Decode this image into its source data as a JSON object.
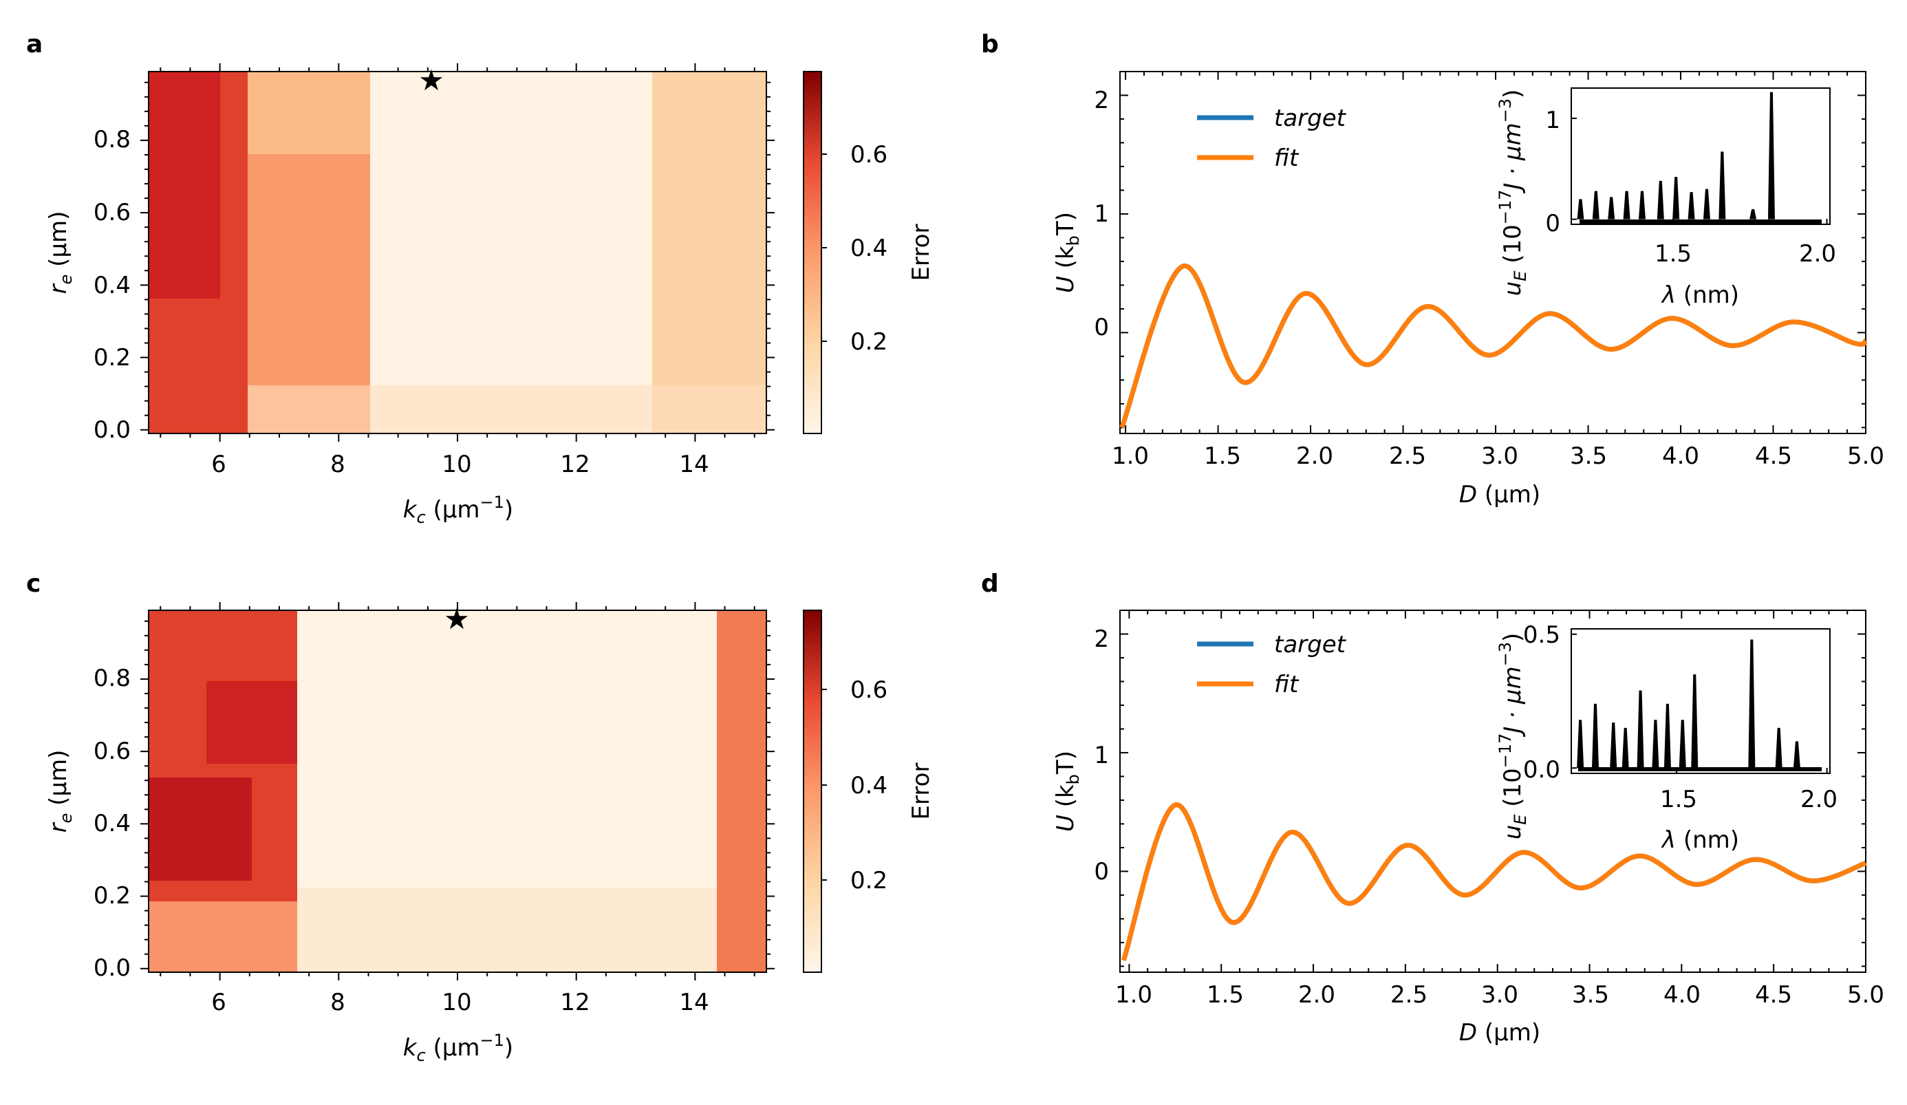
{
  "panels": {
    "a": "a",
    "b": "b",
    "c": "c",
    "d": "d"
  },
  "heatmap_axis": {
    "xlabel_main": "k",
    "xlabel_sub": "c",
    "xlabel_unit_open": " (μm",
    "xlabel_unit_sup": "−1",
    "xlabel_unit_close": ")",
    "ylabel_main": "r",
    "ylabel_sub": "e",
    "ylabel_unit": " (μm)",
    "colorbar_label": "Error"
  },
  "line_axis": {
    "xlabel_main": "D",
    "xlabel_unit": " (μm)",
    "ylabel_main": "U",
    "ylabel_unit_open": " (k",
    "ylabel_unit_sub": "b",
    "ylabel_unit_close": "T)",
    "inset_xlabel_main": "λ",
    "inset_xlabel_unit": " (nm)",
    "inset_ylabel_main": "u",
    "inset_ylabel_sub": "E",
    "inset_ylabel_a": " (10",
    "inset_ylabel_sup1": "−17",
    "inset_ylabel_b": "J · μm",
    "inset_ylabel_sup2": "−3",
    "inset_ylabel_c": ")",
    "legend": [
      "target",
      "fit"
    ]
  },
  "colors": {
    "target": "#1f77b4",
    "fit": "#ff7f0e",
    "inset": "#000000"
  },
  "chart_data": [
    {
      "id": "a",
      "type": "heatmap",
      "title": "",
      "xlabel": "k_c (μm^-1)",
      "ylabel": "r_e (μm)",
      "xlim": [
        4.8,
        15.2
      ],
      "ylim": [
        -0.01,
        0.99
      ],
      "xticks": [
        6,
        8,
        10,
        12,
        14
      ],
      "xtick_labels": [
        "6",
        "8",
        "10",
        "12",
        "14"
      ],
      "yticks": [
        0.0,
        0.2,
        0.4,
        0.6,
        0.8
      ],
      "ytick_labels": [
        "0.0",
        "0.2",
        "0.4",
        "0.6",
        "0.8"
      ],
      "colorbar": {
        "label": "Error",
        "range": [
          0.02,
          0.78
        ],
        "ticks": [
          0.2,
          0.4,
          0.6
        ],
        "tick_labels": [
          "0.2",
          "0.4",
          "0.6"
        ]
      },
      "star": {
        "kc": 9.6,
        "re": 0.96
      },
      "regions": [
        {
          "kc": [
            4.8,
            6.4
          ],
          "re": [
            0.0,
            1.0
          ],
          "error": 0.6
        },
        {
          "kc": [
            6.4,
            8.4
          ],
          "re": [
            0.0,
            1.0
          ],
          "error": 0.38
        },
        {
          "kc": [
            8.4,
            13.0
          ],
          "re": [
            0.0,
            1.0
          ],
          "error": 0.06
        },
        {
          "kc": [
            13.0,
            15.2
          ],
          "re": [
            0.0,
            1.0
          ],
          "error": 0.2
        }
      ]
    },
    {
      "id": "b",
      "type": "line",
      "xlabel": "D (μm)",
      "ylabel": "U (k_bT)",
      "xlim": [
        0.97,
        5.0
      ],
      "ylim": [
        -0.85,
        2.2
      ],
      "xticks": [
        1.0,
        1.5,
        2.0,
        2.5,
        3.0,
        3.5,
        4.0,
        4.5,
        5.0
      ],
      "xtick_labels": [
        "1.0",
        "1.5",
        "2.0",
        "2.5",
        "3.0",
        "3.5",
        "4.0",
        "4.5",
        "5.0"
      ],
      "yticks": [
        0,
        1,
        2
      ],
      "ytick_labels": [
        "0",
        "1",
        "2"
      ],
      "legend": [
        "target",
        "fit"
      ],
      "series": [
        {
          "name": "target"
        },
        {
          "name": "fit"
        }
      ],
      "x": [
        0.98,
        1.31,
        1.64,
        1.97,
        2.3,
        2.63,
        2.96,
        3.29,
        3.62,
        3.95,
        4.28,
        4.61,
        4.94,
        5.0
      ],
      "y": [
        -0.8,
        0.56,
        -0.42,
        0.33,
        -0.27,
        0.22,
        -0.19,
        0.16,
        -0.14,
        0.12,
        -0.11,
        0.09,
        -0.09,
        -0.07
      ],
      "inset": {
        "type": "bar",
        "xlabel": "λ (nm)",
        "ylabel": "u_E (10^-17 J·μm^-3)",
        "xlim": [
          1.17,
          2.01
        ],
        "ylim": [
          -0.05,
          1.3
        ],
        "xticks": [
          1.5,
          2.0
        ],
        "xtick_labels": [
          "1.5",
          "2.0"
        ],
        "yticks": [
          0,
          1
        ],
        "ytick_labels": [
          "0",
          "1"
        ],
        "peaks_x": [
          1.2,
          1.25,
          1.3,
          1.35,
          1.4,
          1.46,
          1.51,
          1.56,
          1.61,
          1.66,
          1.76,
          1.82
        ],
        "peaks_y": [
          0.2,
          0.28,
          0.22,
          0.28,
          0.28,
          0.38,
          0.42,
          0.27,
          0.3,
          0.67,
          0.1,
          1.26
        ]
      }
    },
    {
      "id": "c",
      "type": "heatmap",
      "title": "",
      "xlabel": "k_c (μm^-1)",
      "ylabel": "r_e (μm)",
      "xlim": [
        4.8,
        15.2
      ],
      "ylim": [
        -0.01,
        0.99
      ],
      "xticks": [
        6,
        8,
        10,
        12,
        14
      ],
      "xtick_labels": [
        "6",
        "8",
        "10",
        "12",
        "14"
      ],
      "yticks": [
        0.0,
        0.2,
        0.4,
        0.6,
        0.8
      ],
      "ytick_labels": [
        "0.0",
        "0.2",
        "0.4",
        "0.6",
        "0.8"
      ],
      "colorbar": {
        "label": "Error",
        "range": [
          0.02,
          0.76
        ],
        "ticks": [
          0.2,
          0.4,
          0.6
        ],
        "tick_labels": [
          "0.2",
          "0.4",
          "0.6"
        ]
      },
      "star": {
        "kc": 10.0,
        "re": 0.96
      },
      "regions": [
        {
          "kc": [
            4.8,
            7.3
          ],
          "re": [
            0.0,
            1.0
          ],
          "error": 0.6
        },
        {
          "kc": [
            7.3,
            14.4
          ],
          "re": [
            0.0,
            1.0
          ],
          "error": 0.06
        },
        {
          "kc": [
            14.4,
            15.2
          ],
          "re": [
            0.0,
            1.0
          ],
          "error": 0.4
        }
      ]
    },
    {
      "id": "d",
      "type": "line",
      "xlabel": "D (μm)",
      "ylabel": "U (k_bT)",
      "xlim": [
        0.95,
        5.0
      ],
      "ylim": [
        -0.85,
        2.2
      ],
      "xticks": [
        1.0,
        1.5,
        2.0,
        2.5,
        3.0,
        3.5,
        4.0,
        4.5,
        5.0
      ],
      "xtick_labels": [
        "1.0",
        "1.5",
        "2.0",
        "2.5",
        "3.0",
        "3.5",
        "4.0",
        "4.5",
        "5.0"
      ],
      "yticks": [
        0,
        1,
        2
      ],
      "ytick_labels": [
        "0",
        "1",
        "2"
      ],
      "legend": [
        "target",
        "fit"
      ],
      "series": [
        {
          "name": "target"
        },
        {
          "name": "fit"
        }
      ],
      "x": [
        0.97,
        1.25,
        1.56,
        1.88,
        2.19,
        2.51,
        2.82,
        3.14,
        3.45,
        3.77,
        4.08,
        4.4,
        4.71,
        5.0
      ],
      "y": [
        -0.75,
        0.56,
        -0.43,
        0.33,
        -0.27,
        0.22,
        -0.2,
        0.16,
        -0.14,
        0.13,
        -0.11,
        0.1,
        -0.08,
        0.07
      ],
      "inset": {
        "type": "bar",
        "xlabel": "λ (nm)",
        "ylabel": "u_E (10^-17 J·μm^-3)",
        "xlim": [
          1.15,
          2.01
        ],
        "ylim": [
          -0.02,
          0.52
        ],
        "xticks": [
          1.5,
          2.0
        ],
        "xtick_labels": [
          "1.5",
          "2.0"
        ],
        "yticks": [
          0.0,
          0.5
        ],
        "ytick_labels": [
          "0.0",
          "0.5"
        ],
        "peaks_x": [
          1.18,
          1.23,
          1.29,
          1.33,
          1.38,
          1.43,
          1.47,
          1.52,
          1.56,
          1.64,
          1.75,
          1.84,
          1.9
        ],
        "peaks_y": [
          0.18,
          0.24,
          0.17,
          0.15,
          0.29,
          0.18,
          0.24,
          0.18,
          0.35,
          0.0,
          0.48,
          0.15,
          0.1
        ]
      }
    }
  ]
}
